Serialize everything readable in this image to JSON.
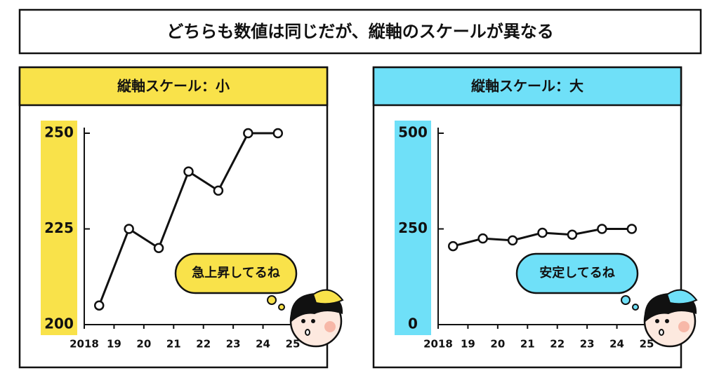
{
  "title": "どちらも数値は同じだが、縦軸のスケールが異なる",
  "chart_data": [
    {
      "type": "line",
      "title": "縦軸スケール：小",
      "color": "#f9e24a",
      "x": [
        2018.5,
        2019.5,
        2020.5,
        2021.5,
        2022.5,
        2023.5,
        2024.5
      ],
      "values": [
        205,
        225,
        220,
        240,
        235,
        250,
        250
      ],
      "xlim": [
        2018,
        2025
      ],
      "xticks": [
        2018,
        {
          "value": 2019,
          "label": "19"
        },
        {
          "value": 2020,
          "label": "20"
        },
        {
          "value": 2021,
          "label": "21"
        },
        {
          "value": 2022,
          "label": "22"
        },
        {
          "value": 2023,
          "label": "23"
        },
        {
          "value": 2024,
          "label": "24"
        },
        {
          "value": 2025,
          "label": "25"
        }
      ],
      "ylim": [
        200,
        250
      ],
      "yticks": [
        200,
        225,
        250
      ],
      "annotation": "急上昇してるね"
    },
    {
      "type": "line",
      "title": "縦軸スケール：大",
      "color": "#6fe0f8",
      "x": [
        2018.5,
        2019.5,
        2020.5,
        2021.5,
        2022.5,
        2023.5,
        2024.5
      ],
      "values": [
        205,
        225,
        220,
        240,
        235,
        250,
        250
      ],
      "xlim": [
        2018,
        2025
      ],
      "xticks": [
        2018,
        {
          "value": 2019,
          "label": "19"
        },
        {
          "value": 2020,
          "label": "20"
        },
        {
          "value": 2021,
          "label": "21"
        },
        {
          "value": 2022,
          "label": "22"
        },
        {
          "value": 2023,
          "label": "23"
        },
        {
          "value": 2024,
          "label": "24"
        },
        {
          "value": 2025,
          "label": "25"
        }
      ],
      "ylim": [
        0,
        500
      ],
      "yticks": [
        0,
        250,
        500
      ],
      "annotation": "安定してるね"
    }
  ]
}
